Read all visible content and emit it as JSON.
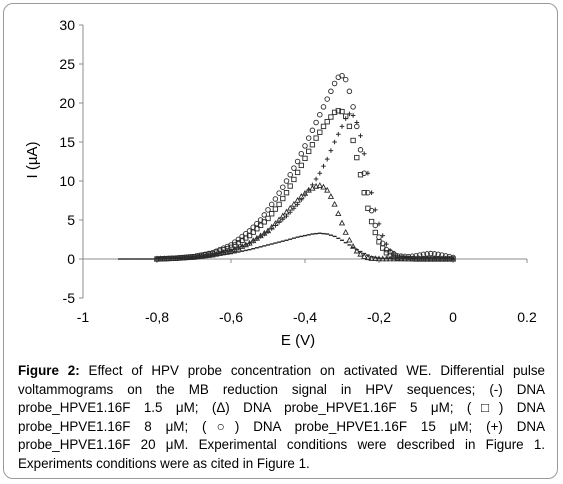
{
  "caption": {
    "label": "Figure 2:",
    "text": "Effect of HPV probe concentration on activated WE. Differential pulse voltammograms on the MB reduction signal in HPV sequences; (-) DNA probe_HPVE1.16F 1.5 μM; (Δ) DNA probe_HPVE1.16F 5 μM; (□) DNA probe_HPVE1.16F 8 μM; (○) DNA probe_HPVE1.16F 15 μM; (+) DNA probe_HPVE1.16F 20 μM. Experimental conditions were described in Figure 1. Experiments conditions were as cited in Figure 1."
  },
  "chart_data": {
    "type": "scatter",
    "xlabel": "E (V)",
    "ylabel": "I (µA)",
    "xlim": [
      -1,
      0.2
    ],
    "ylim": [
      -5,
      30
    ],
    "x_ticks": [
      -1,
      -0.8,
      -0.6,
      -0.4,
      -0.2,
      0,
      0.2
    ],
    "x_tick_labels": [
      "-1",
      "-0,8",
      "-0,6",
      "-0,4",
      "-0,2",
      "0",
      "0.2"
    ],
    "y_ticks": [
      -5,
      0,
      5,
      10,
      15,
      20,
      25,
      30
    ],
    "y_tick_labels": [
      "-5",
      "0",
      "5",
      "10",
      "15",
      "20",
      "25",
      "30"
    ],
    "grid": false,
    "legend": "none",
    "series": [
      {
        "marker": "dash",
        "x": [
          -0.9,
          -0.85,
          -0.8,
          -0.75,
          -0.7,
          -0.65,
          -0.6,
          -0.55,
          -0.5,
          -0.45,
          -0.42,
          -0.4,
          -0.38,
          -0.36,
          -0.34,
          -0.32,
          -0.3,
          -0.28,
          -0.26,
          -0.24,
          -0.22,
          -0.2,
          -0.15,
          -0.1,
          -0.05,
          0
        ],
        "y": [
          0,
          0,
          0,
          0.05,
          0.15,
          0.35,
          0.7,
          1.2,
          1.8,
          2.4,
          2.8,
          3.0,
          3.2,
          3.3,
          3.2,
          2.9,
          2.4,
          1.8,
          1.2,
          0.7,
          0.3,
          0.1,
          0,
          0,
          0,
          0
        ]
      },
      {
        "marker": "triangle",
        "x": [
          -0.8,
          -0.75,
          -0.7,
          -0.65,
          -0.6,
          -0.55,
          -0.5,
          -0.47,
          -0.45,
          -0.43,
          -0.41,
          -0.39,
          -0.37,
          -0.36,
          -0.35,
          -0.34,
          -0.33,
          -0.32,
          -0.31,
          -0.3,
          -0.29,
          -0.28,
          -0.27,
          -0.26,
          -0.25,
          -0.24,
          -0.23,
          -0.22,
          -0.2,
          -0.15,
          -0.1,
          -0.05,
          0
        ],
        "y": [
          0,
          0.05,
          0.2,
          0.5,
          1.0,
          2.0,
          3.6,
          5.0,
          6.0,
          7.0,
          8.0,
          8.8,
          9.3,
          9.4,
          9.2,
          8.8,
          8.0,
          7.0,
          5.8,
          4.6,
          3.4,
          2.4,
          1.6,
          1.0,
          0.6,
          0.3,
          0.15,
          0.05,
          0,
          0,
          0,
          0,
          0
        ]
      },
      {
        "marker": "square",
        "x": [
          -0.8,
          -0.75,
          -0.7,
          -0.65,
          -0.6,
          -0.55,
          -0.5,
          -0.47,
          -0.45,
          -0.43,
          -0.41,
          -0.39,
          -0.37,
          -0.35,
          -0.33,
          -0.32,
          -0.31,
          -0.3,
          -0.29,
          -0.28,
          -0.27,
          -0.26,
          -0.25,
          -0.24,
          -0.23,
          -0.22,
          -0.21,
          -0.2,
          -0.19,
          -0.18,
          -0.17,
          -0.15,
          -0.1,
          -0.05,
          0
        ],
        "y": [
          0,
          0.1,
          0.3,
          0.7,
          1.5,
          3.0,
          5.2,
          7.0,
          8.5,
          10.2,
          12.0,
          13.8,
          15.5,
          17.0,
          18.2,
          18.8,
          19.0,
          18.9,
          18.3,
          17.0,
          15.2,
          13.0,
          10.8,
          8.5,
          6.5,
          4.8,
          3.4,
          2.2,
          1.4,
          0.8,
          0.4,
          0.1,
          0,
          0,
          0
        ]
      },
      {
        "marker": "circle",
        "x": [
          -0.8,
          -0.75,
          -0.7,
          -0.65,
          -0.6,
          -0.55,
          -0.52,
          -0.5,
          -0.48,
          -0.46,
          -0.44,
          -0.42,
          -0.4,
          -0.38,
          -0.36,
          -0.34,
          -0.32,
          -0.31,
          -0.3,
          -0.29,
          -0.28,
          -0.27,
          -0.26,
          -0.25,
          -0.24,
          -0.23,
          -0.22,
          -0.21,
          -0.2,
          -0.18,
          -0.15,
          -0.12,
          -0.1,
          -0.08,
          -0.06,
          -0.04,
          -0.02,
          0
        ],
        "y": [
          0,
          0.1,
          0.3,
          0.8,
          1.8,
          3.6,
          5.0,
          6.3,
          7.7,
          9.2,
          10.8,
          12.5,
          14.5,
          16.5,
          18.5,
          20.5,
          22.5,
          23.3,
          23.5,
          23.0,
          21.5,
          19.5,
          17.0,
          14.0,
          11.0,
          8.5,
          6.2,
          4.3,
          2.8,
          1.2,
          0.4,
          0.3,
          0.4,
          0.6,
          0.7,
          0.6,
          0.4,
          0.2
        ]
      },
      {
        "marker": "plus",
        "x": [
          -0.8,
          -0.75,
          -0.7,
          -0.65,
          -0.6,
          -0.55,
          -0.5,
          -0.45,
          -0.42,
          -0.4,
          -0.38,
          -0.36,
          -0.34,
          -0.32,
          -0.3,
          -0.29,
          -0.28,
          -0.27,
          -0.26,
          -0.25,
          -0.24,
          -0.23,
          -0.22,
          -0.21,
          -0.2,
          -0.19,
          -0.18,
          -0.17,
          -0.15,
          -0.1,
          -0.05,
          0
        ],
        "y": [
          0,
          0.05,
          0.2,
          0.5,
          1.0,
          2.0,
          3.5,
          5.5,
          7.0,
          8.2,
          9.5,
          11.0,
          12.8,
          15.0,
          17.0,
          18.0,
          18.6,
          18.4,
          17.5,
          15.8,
          13.5,
          11.0,
          8.5,
          6.3,
          4.5,
          3.0,
          1.9,
          1.1,
          0.4,
          0,
          0,
          0
        ]
      }
    ]
  }
}
